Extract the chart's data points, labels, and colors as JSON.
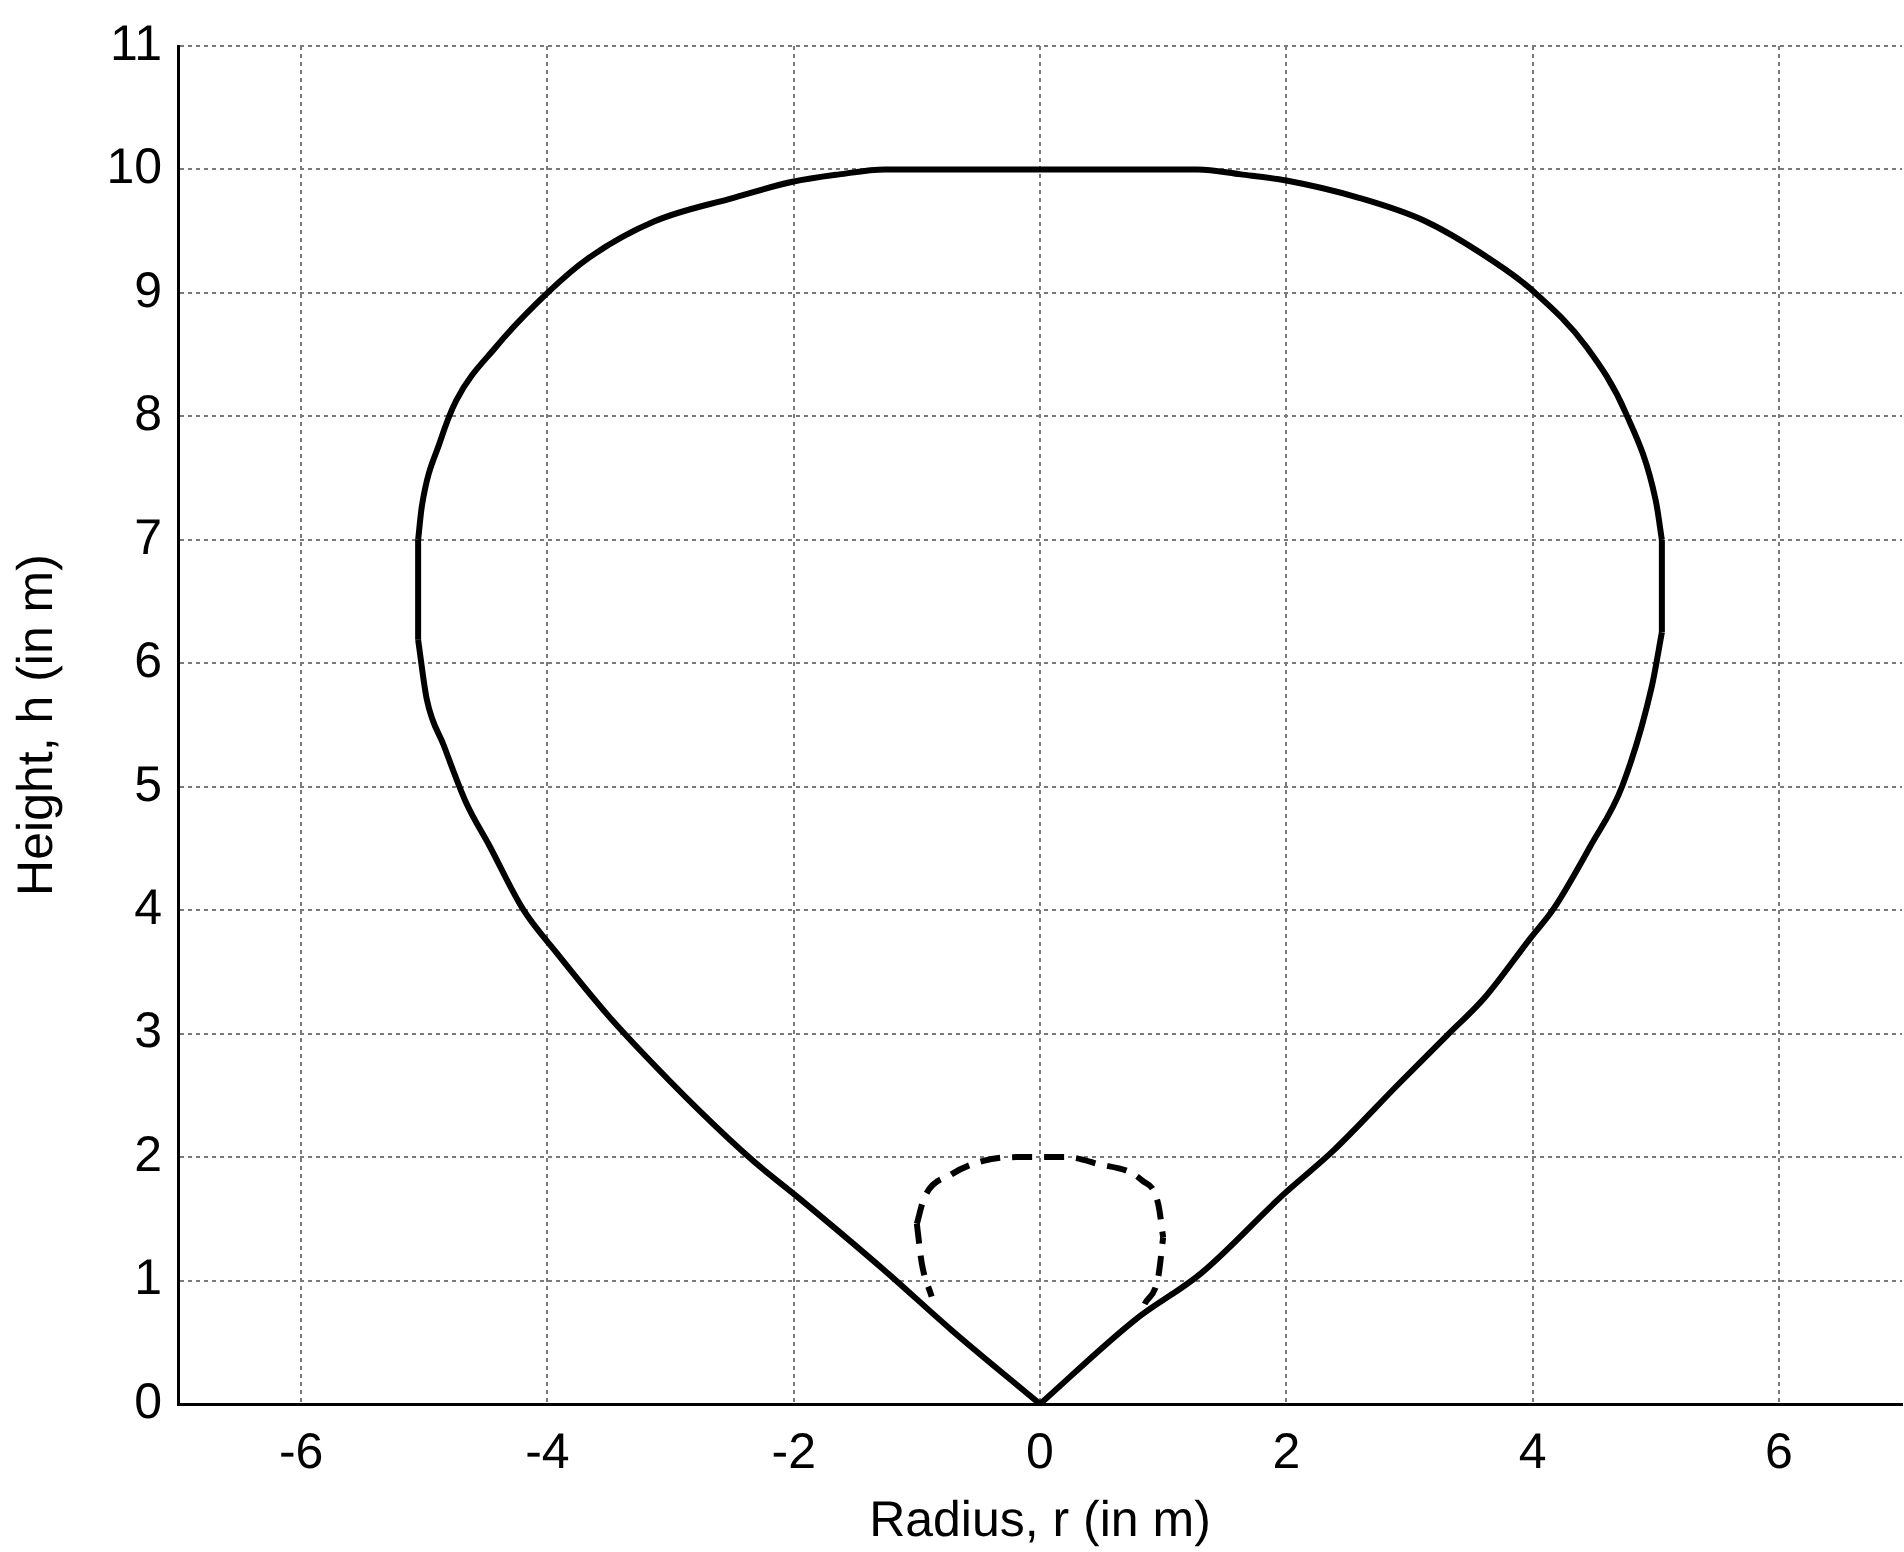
{
  "chart_data": {
    "type": "line",
    "xlabel": "Radius, r (in m)",
    "ylabel": "Height, h (in m)",
    "xlim": [
      -7,
      7
    ],
    "xticks": [
      -6,
      -4,
      -2,
      0,
      2,
      4,
      6
    ],
    "ylim": [
      0,
      11
    ],
    "yticks": [
      0,
      1,
      2,
      3,
      4,
      5,
      6,
      7,
      8,
      9,
      10,
      11
    ],
    "grid": true,
    "marker": "none",
    "series": [
      {
        "color": "#000000",
        "line_style": "solid",
        "x": [
          -5.05,
          -4.98,
          -4.84,
          -4.66,
          -4.47,
          -4.2,
          -3.93,
          -3.51,
          -3.29,
          -2.76,
          -2.33,
          -1.96,
          -1.26,
          -0.72,
          0
        ],
        "values": [
          6.19,
          5.71,
          5.33,
          4.87,
          4.52,
          4.01,
          3.66,
          3.15,
          2.91,
          2.37,
          1.97,
          1.67,
          1.08,
          0.6,
          0
        ]
      },
      {
        "color": "#000000",
        "line_style": "solid",
        "x": [
          0,
          0.77,
          1.31,
          1.98,
          2.38,
          2.91,
          3.31,
          3.61,
          3.98,
          4.17,
          4.47,
          4.73,
          4.97,
          5.05
        ],
        "values": [
          0,
          0.68,
          1.06,
          1.7,
          2.05,
          2.59,
          2.99,
          3.29,
          3.77,
          4.01,
          4.52,
          5.01,
          5.82,
          6.25
        ]
      },
      {
        "color": "#000000",
        "line_style": "solid",
        "x": [
          -5.05,
          -5.02,
          -4.87,
          -4.74,
          -4.42,
          -4.0,
          -3.67,
          -3.13,
          -2.49,
          -2.01,
          -1.63,
          -1.26,
          1.28,
          1.63,
          2.0,
          2.59,
          3.13,
          3.72,
          4.01,
          4.44,
          4.76,
          5.0,
          5.05
        ],
        "values": [
          7.0,
          7.27,
          7.8,
          8.13,
          8.56,
          9.0,
          9.28,
          9.58,
          9.77,
          9.9,
          9.96,
          10.0,
          10.0,
          9.96,
          9.91,
          9.77,
          9.58,
          9.23,
          9.01,
          8.56,
          8.02,
          7.32,
          7.0
        ]
      },
      {
        "color": "#000000",
        "line_style": "solid",
        "x": [
          -5.05,
          -5.05
        ],
        "values": [
          6.19,
          7.0
        ]
      },
      {
        "color": "#000000",
        "line_style": "solid",
        "x": [
          5.05,
          5.05
        ],
        "values": [
          6.25,
          7.0
        ]
      },
      {
        "color": "#000000",
        "line_style": "dashed",
        "x": [
          -1.0,
          -0.96,
          -0.88
        ],
        "values": [
          1.46,
          1.14,
          0.87
        ]
      },
      {
        "color": "#000000",
        "line_style": "dashed",
        "x": [
          -1.0,
          -0.94,
          -0.72,
          -0.46,
          -0.19,
          0.21,
          0.45,
          0.83,
          0.96,
          1.0
        ],
        "values": [
          1.46,
          1.67,
          1.86,
          1.97,
          2.0,
          2.0,
          1.95,
          1.81,
          1.62,
          1.35
        ]
      },
      {
        "color": "#000000",
        "line_style": "dashed",
        "x": [
          0.85,
          0.96,
          1.0
        ],
        "values": [
          0.81,
          1.03,
          1.35
        ]
      }
    ]
  }
}
